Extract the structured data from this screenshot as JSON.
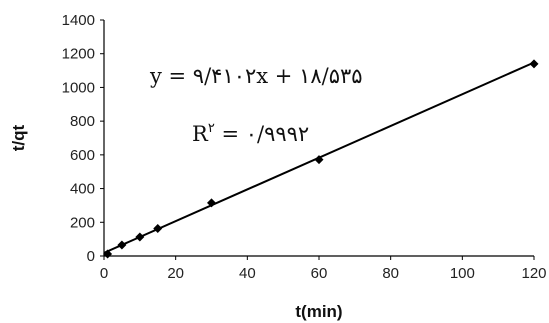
{
  "chart_data": {
    "type": "scatter",
    "xlabel": "t(min)",
    "ylabel": "t/qt",
    "xlim": [
      0,
      120
    ],
    "ylim": [
      0,
      1400
    ],
    "x_ticks": [
      0,
      20,
      40,
      60,
      80,
      100,
      120
    ],
    "y_ticks": [
      0,
      200,
      400,
      600,
      800,
      1000,
      1200,
      1400
    ],
    "grid": false,
    "series": [
      {
        "x": [
          1,
          5,
          10,
          15,
          30,
          60,
          120
        ],
        "y": [
          12,
          65,
          113,
          163,
          315,
          572,
          1140
        ],
        "marker": "diamond",
        "color": "#000000"
      }
    ],
    "trendline": {
      "slope": 9.4102,
      "intercept": 18.535,
      "color": "#000000"
    },
    "annotations": {
      "equation": "y = ۹/۴۱۰۲x + ۱۸/۵۳۵",
      "r2_prefix": "R",
      "r2_sup": "۲",
      "r2_value": " = ۰/۹۹۹۲"
    }
  }
}
